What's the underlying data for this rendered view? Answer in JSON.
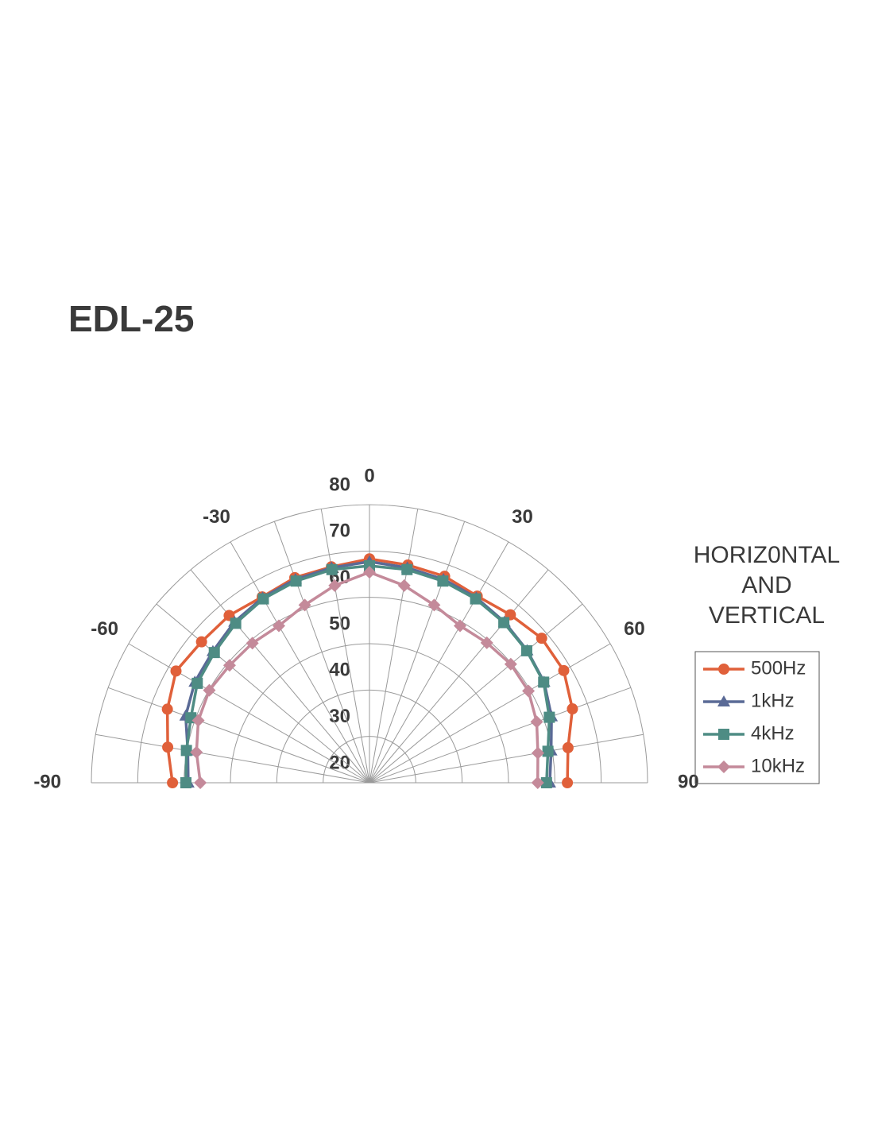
{
  "chart_data": {
    "type": "polar",
    "title": "EDL-25",
    "legend_title": [
      "HORIZ0NTAL",
      "AND",
      "VERTICAL"
    ],
    "theta": [
      -90,
      -80,
      -70,
      -60,
      -50,
      -40,
      -30,
      -20,
      -10,
      0,
      10,
      20,
      30,
      40,
      50,
      60,
      70,
      80,
      90
    ],
    "thetalim": [
      -90,
      90
    ],
    "thetaticks": [
      -90,
      -60,
      -30,
      0,
      30,
      60,
      90
    ],
    "theta_grid_step": 10,
    "rlim": [
      20,
      80
    ],
    "rticks": [
      20,
      30,
      40,
      50,
      60,
      70,
      80
    ],
    "grid": true,
    "legend": "right",
    "series": [
      {
        "name": "500Hz",
        "color": "#e0603a",
        "marker": "circle",
        "values": [
          62.5,
          64.2,
          66.4,
          68.2,
          67.3,
          67.1,
          66.3,
          67.1,
          67.3,
          68.3,
          67.7,
          67.4,
          66.5,
          67.3,
          68.5,
          68.4,
          66.6,
          63.5,
          62.7
        ]
      },
      {
        "name": "1kHz",
        "color": "#5a6a96",
        "marker": "triangle",
        "values": [
          59.1,
          59.8,
          62.2,
          63.5,
          64.1,
          65.3,
          66.1,
          66.7,
          67.1,
          67.7,
          67.1,
          66.7,
          66.1,
          65.3,
          64.4,
          63.5,
          61.8,
          59.8,
          58.9
        ]
      },
      {
        "name": "4kHz",
        "color": "#4e8c84",
        "marker": "square",
        "values": [
          59.6,
          60.1,
          61.0,
          62.9,
          63.7,
          64.9,
          65.8,
          66.3,
          66.7,
          66.8,
          66.7,
          66.3,
          65.8,
          65.1,
          64.3,
          63.4,
          61.3,
          59.1,
          58.2
        ]
      },
      {
        "name": "10kHz",
        "color": "#c48a9a",
        "marker": "diamond",
        "values": [
          56.5,
          57.9,
          59.3,
          59.9,
          59.4,
          59.3,
          59.1,
          60.8,
          63.2,
          65.4,
          63.2,
          60.8,
          59.1,
          59.4,
          59.8,
          59.6,
          58.4,
          56.9,
          56.3
        ]
      }
    ]
  }
}
